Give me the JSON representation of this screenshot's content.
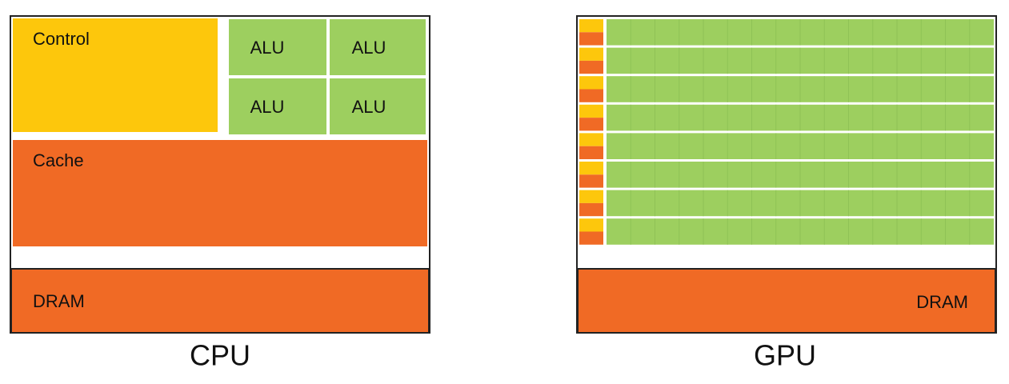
{
  "cpu": {
    "control": "Control",
    "alus": [
      "ALU",
      "ALU",
      "ALU",
      "ALU"
    ],
    "cache": "Cache",
    "dram": "DRAM",
    "caption": "CPU"
  },
  "gpu": {
    "dram": "DRAM",
    "caption": "GPU"
  }
}
